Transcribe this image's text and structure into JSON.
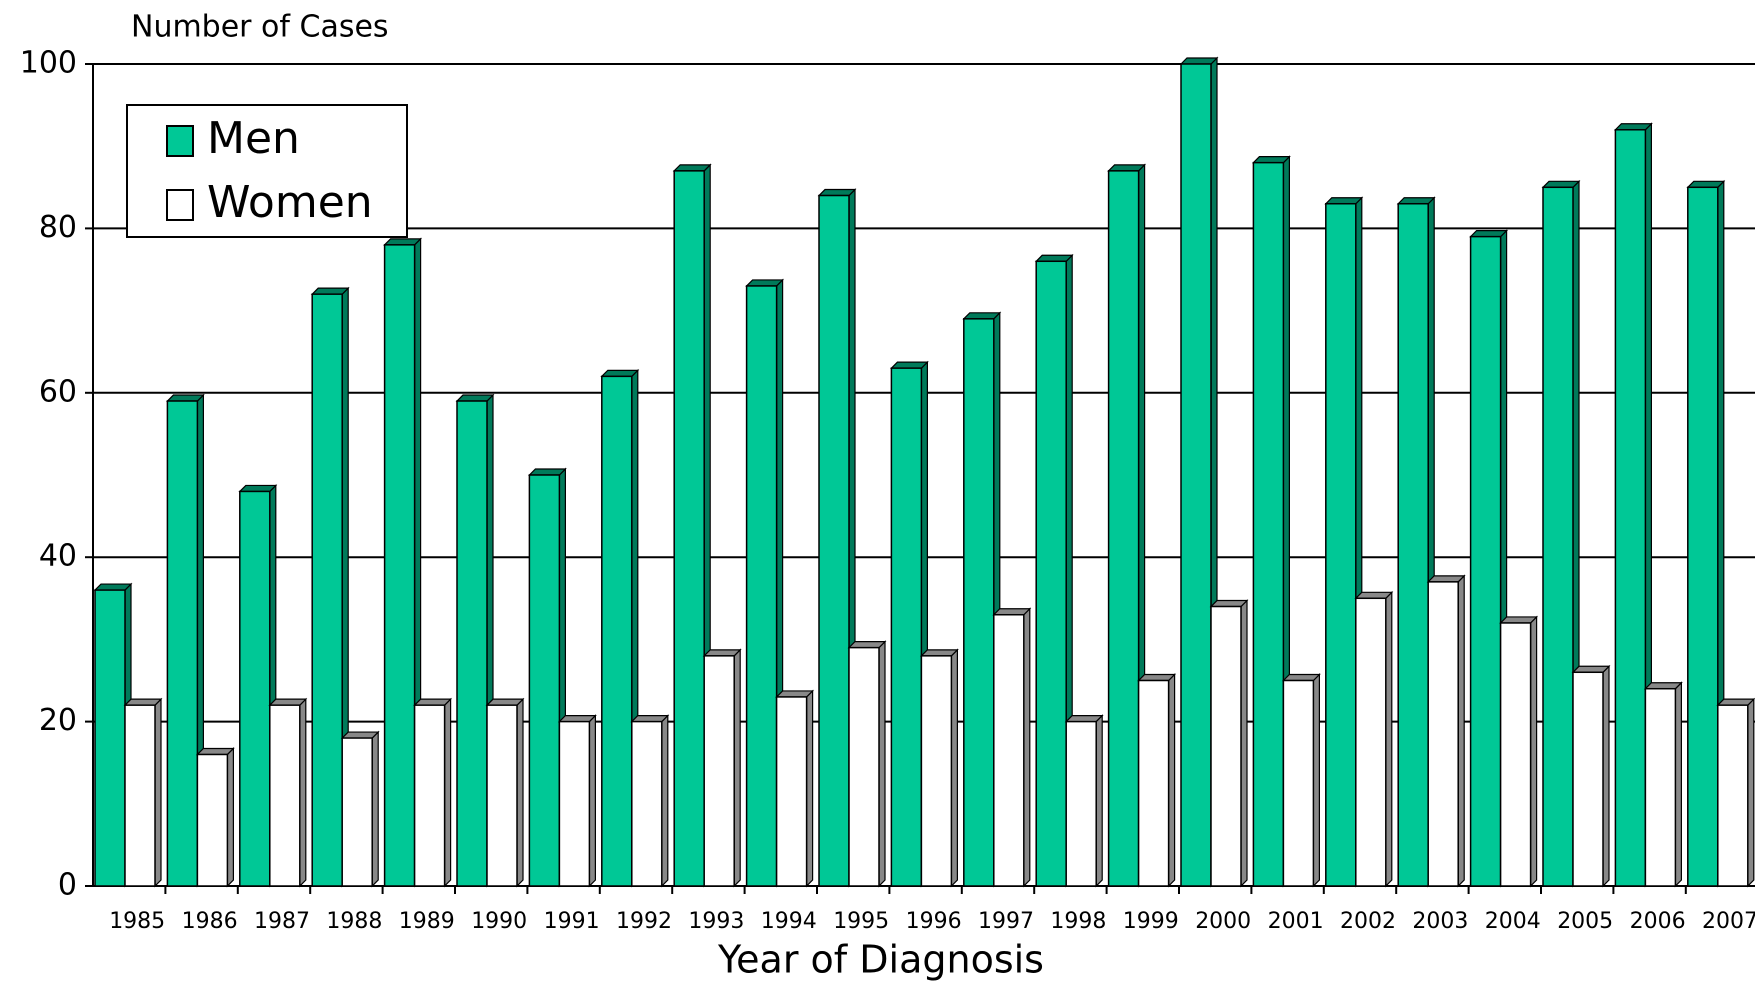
{
  "chart_data": {
    "type": "bar",
    "title": "Number of Cases",
    "x_label": "Year of Diagnosis",
    "categories": [
      "1985",
      "1986",
      "1987",
      "1988",
      "1989",
      "1990",
      "1991",
      "1992",
      "1993",
      "1994",
      "1995",
      "1996",
      "1997",
      "1998",
      "1999",
      "2000",
      "2001",
      "2002",
      "2003",
      "2004",
      "2005",
      "2006",
      "2007"
    ],
    "series": [
      {
        "name": "Men",
        "color": "#00c896",
        "values": [
          36,
          59,
          48,
          72,
          78,
          59,
          50,
          62,
          87,
          73,
          84,
          63,
          69,
          76,
          87,
          100,
          88,
          83,
          83,
          79,
          85,
          92,
          85
        ]
      },
      {
        "name": "Women",
        "color": "#ffffff",
        "values": [
          22,
          16,
          22,
          18,
          22,
          22,
          20,
          20,
          28,
          23,
          29,
          28,
          33,
          20,
          25,
          34,
          25,
          35,
          37,
          32,
          26,
          24,
          22
        ]
      }
    ],
    "ylim": [
      0,
      100
    ],
    "yticks": [
      0,
      20,
      40,
      60,
      80,
      100
    ],
    "grid": true,
    "legend": "upper left"
  }
}
